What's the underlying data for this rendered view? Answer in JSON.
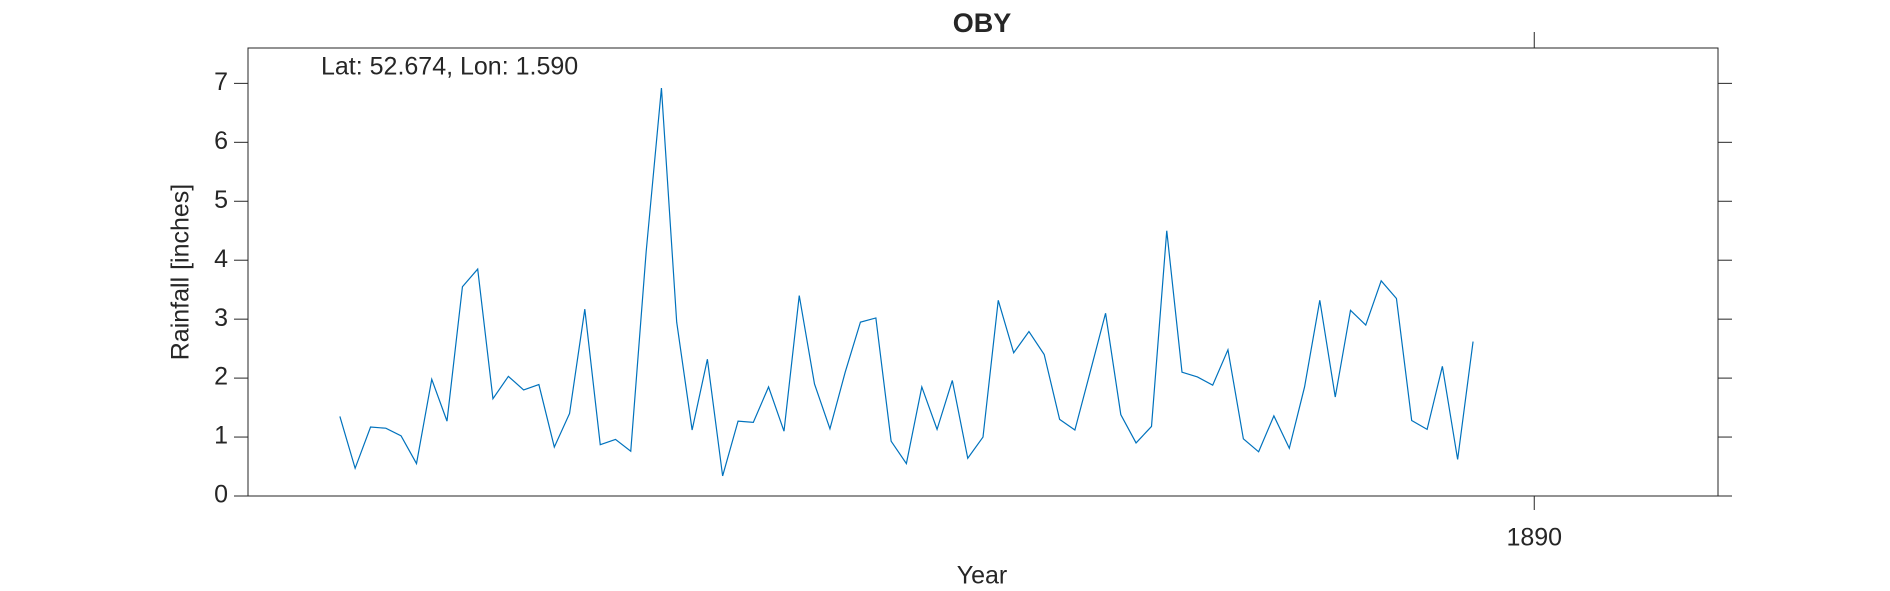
{
  "chart_data": {
    "type": "line",
    "title": "OBY",
    "annotation": "Lat: 52.674, Lon: 1.590",
    "xlabel": "Year",
    "ylabel": "Rainfall [inches]",
    "x": [
      1883.5,
      1883.583,
      1883.667,
      1883.75,
      1883.833,
      1883.917,
      1884.0,
      1884.083,
      1884.167,
      1884.25,
      1884.333,
      1884.417,
      1884.5,
      1884.583,
      1884.667,
      1884.75,
      1884.833,
      1884.917,
      1885.0,
      1885.083,
      1885.167,
      1885.25,
      1885.333,
      1885.417,
      1885.5,
      1885.583,
      1885.667,
      1885.75,
      1885.833,
      1885.917,
      1886.0,
      1886.083,
      1886.167,
      1886.25,
      1886.333,
      1886.417,
      1886.5,
      1886.583,
      1886.667,
      1886.75,
      1886.833,
      1886.917,
      1887.0,
      1887.083,
      1887.167,
      1887.25,
      1887.333,
      1887.417,
      1887.5,
      1887.583,
      1887.667,
      1887.75,
      1887.833,
      1887.917,
      1888.0,
      1888.083,
      1888.167,
      1888.25,
      1888.333,
      1888.417,
      1888.5,
      1888.583,
      1888.667,
      1888.75,
      1888.833,
      1888.917,
      1889.0,
      1889.083,
      1889.167,
      1889.25,
      1889.333,
      1889.417,
      1889.5,
      1889.583,
      1889.667
    ],
    "values": [
      1.35,
      0.47,
      1.17,
      1.15,
      1.02,
      0.55,
      1.98,
      1.27,
      3.55,
      3.85,
      1.65,
      2.03,
      1.8,
      1.89,
      0.83,
      1.4,
      3.17,
      0.87,
      0.96,
      0.76,
      4.15,
      6.92,
      2.95,
      1.12,
      2.32,
      0.34,
      1.27,
      1.25,
      1.85,
      1.1,
      3.4,
      1.9,
      1.14,
      2.1,
      2.95,
      3.02,
      0.93,
      0.55,
      1.85,
      1.13,
      1.96,
      0.64,
      1.0,
      3.32,
      2.43,
      2.79,
      2.4,
      1.3,
      1.12,
      2.1,
      3.1,
      1.38,
      0.9,
      1.18,
      4.5,
      2.1,
      2.02,
      1.88,
      2.48,
      0.97,
      0.75,
      1.36,
      0.81,
      1.85,
      3.32,
      1.68,
      3.15,
      2.9,
      3.65,
      3.35,
      1.28,
      1.13,
      2.2,
      0.62,
      2.62
    ],
    "color": "#0072bd",
    "xlim": [
      1883,
      1891
    ],
    "xticks": [
      1890
    ],
    "ylim": [
      0,
      7.6
    ],
    "yticks": [
      0,
      1,
      2,
      3,
      4,
      5,
      6,
      7
    ],
    "grid": false
  }
}
